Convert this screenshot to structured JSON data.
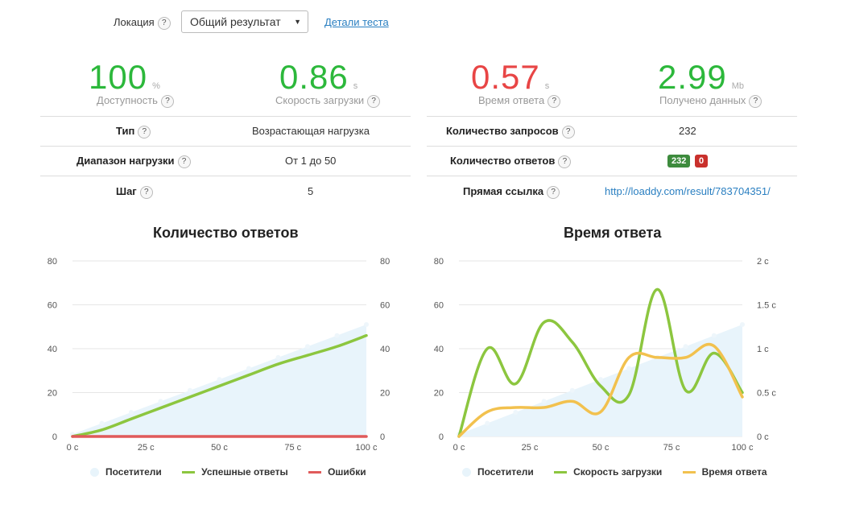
{
  "header": {
    "location_label": "Локация",
    "location_value": "Общий результат",
    "details_link": "Детали теста"
  },
  "metrics": [
    {
      "value": "100",
      "unit": "%",
      "label": "Доступность",
      "color": "#2cb83b"
    },
    {
      "value": "0.86",
      "unit": "s",
      "label": "Скорость загрузки",
      "color": "#2cb83b"
    },
    {
      "value": "0.57",
      "unit": "s",
      "label": "Время ответа",
      "color": "#e84545"
    },
    {
      "value": "2.99",
      "unit": "Mb",
      "label": "Получено данных",
      "color": "#2cb83b"
    }
  ],
  "left_table": [
    {
      "key": "Тип",
      "value": "Возрастающая нагрузка"
    },
    {
      "key": "Диапазон нагрузки",
      "value": "От 1 до 50"
    },
    {
      "key": "Шаг",
      "value": "5"
    }
  ],
  "right_table": {
    "requests_key": "Количество запросов",
    "requests_value": "232",
    "responses_key": "Количество ответов",
    "responses_ok": "232",
    "responses_err": "0",
    "link_key": "Прямая ссылка",
    "link_value": "http://loaddy.com/result/783704351/"
  },
  "help_icon": "?",
  "colors": {
    "ok_badge": "#3d8b3d",
    "err_badge": "#c9302c",
    "visitors": "#e8f4fb",
    "success": "#8cc63f",
    "errors": "#e05a5a",
    "response": "#f2c14e",
    "link": "#2a7fc1"
  },
  "chart_data": [
    {
      "type": "line",
      "title": "Количество ответов",
      "x_ticks": [
        "0 с",
        "25 с",
        "50 с",
        "75 с",
        "100 с"
      ],
      "y_ticks": [
        "0",
        "20",
        "40",
        "60",
        "80"
      ],
      "y2_ticks": [
        "0",
        "20",
        "40",
        "60",
        "80"
      ],
      "ylim": [
        0,
        80
      ],
      "x": [
        0,
        10,
        20,
        30,
        40,
        50,
        60,
        70,
        80,
        90,
        100
      ],
      "series": [
        {
          "name": "Посетители",
          "kind": "area",
          "values": [
            1,
            6,
            11,
            16,
            21,
            26,
            31,
            36,
            41,
            46,
            51
          ]
        },
        {
          "name": "Успешные ответы",
          "kind": "line",
          "values": [
            0,
            3,
            8,
            13,
            18,
            23,
            28,
            33,
            37,
            41,
            46
          ]
        },
        {
          "name": "Ошибки",
          "kind": "line",
          "values": [
            0,
            0,
            0,
            0,
            0,
            0,
            0,
            0,
            0,
            0,
            0
          ]
        }
      ],
      "legend": [
        "Посетители",
        "Успешные ответы",
        "Ошибки"
      ]
    },
    {
      "type": "line",
      "title": "Время ответа",
      "x_ticks": [
        "0 с",
        "25 с",
        "50 с",
        "75 с",
        "100 с"
      ],
      "y_ticks": [
        "0",
        "20",
        "40",
        "60",
        "80"
      ],
      "y2_ticks": [
        "0 с",
        "0.5 с",
        "1 с",
        "1.5 с",
        "2 с"
      ],
      "ylim": [
        0,
        80
      ],
      "y2lim": [
        0,
        2
      ],
      "x": [
        0,
        10,
        20,
        30,
        40,
        50,
        60,
        70,
        80,
        90,
        100
      ],
      "series": [
        {
          "name": "Посетители",
          "kind": "area",
          "axis": "left",
          "values": [
            1,
            6,
            11,
            16,
            21,
            26,
            31,
            36,
            41,
            46,
            51
          ]
        },
        {
          "name": "Скорость загрузки",
          "kind": "line",
          "axis": "left",
          "values": [
            0,
            40,
            24,
            52,
            43,
            23,
            19,
            67,
            21,
            38,
            20
          ]
        },
        {
          "name": "Время ответа",
          "kind": "line",
          "axis": "right",
          "values": [
            0,
            0.28,
            0.33,
            0.33,
            0.4,
            0.28,
            0.9,
            0.9,
            0.9,
            1.03,
            0.45
          ]
        }
      ],
      "legend": [
        "Посетители",
        "Скорость загрузки",
        "Время ответа"
      ]
    }
  ]
}
